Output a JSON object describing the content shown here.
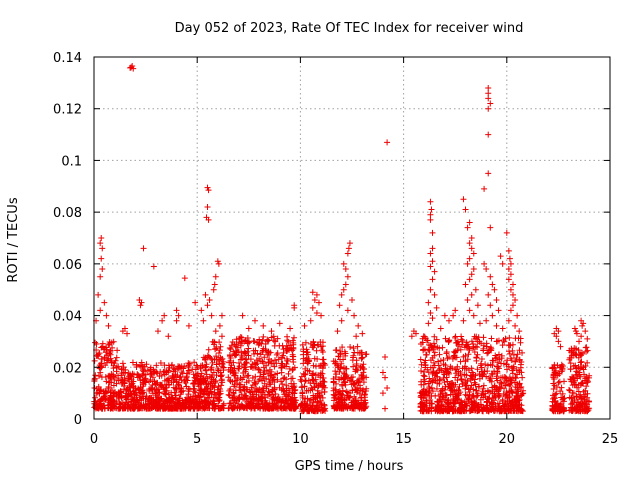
{
  "chart_data": {
    "type": "scatter",
    "title": "Day 052 of 2023, Rate Of TEC Index for receiver wind",
    "xlabel": "GPS time / hours",
    "ylabel": "ROTI / TECUs",
    "xlim": [
      0,
      25
    ],
    "ylim": [
      0,
      0.14
    ],
    "xticks": [
      0,
      5,
      10,
      15,
      20,
      25
    ],
    "yticks": [
      0,
      0.02,
      0.04,
      0.06,
      0.08,
      0.1,
      0.12,
      0.14
    ],
    "ytick_labels": [
      "0",
      "0.02",
      "0.04",
      "0.06",
      "0.08",
      "0.1",
      "0.12",
      "0.14"
    ],
    "grid": true,
    "marker": "+",
    "color": "#ee0000",
    "dense_bands": [
      {
        "x": [
          0.0,
          1.2
        ],
        "y": [
          0.004,
          0.03
        ]
      },
      {
        "x": [
          1.2,
          5.3
        ],
        "y": [
          0.004,
          0.022
        ]
      },
      {
        "x": [
          5.3,
          6.3
        ],
        "y": [
          0.004,
          0.03
        ]
      },
      {
        "x": [
          6.5,
          9.8
        ],
        "y": [
          0.004,
          0.032
        ]
      },
      {
        "x": [
          10.0,
          11.2
        ],
        "y": [
          0.003,
          0.03
        ]
      },
      {
        "x": [
          11.6,
          13.2
        ],
        "y": [
          0.004,
          0.028
        ]
      },
      {
        "x": [
          15.8,
          20.8
        ],
        "y": [
          0.003,
          0.032
        ]
      },
      {
        "x": [
          22.2,
          22.8
        ],
        "y": [
          0.003,
          0.022
        ]
      },
      {
        "x": [
          23.0,
          24.0
        ],
        "y": [
          0.003,
          0.028
        ]
      }
    ],
    "points": [
      [
        1.8,
        0.136
      ],
      [
        1.9,
        0.1355
      ],
      [
        1.85,
        0.1365
      ],
      [
        1.75,
        0.1358
      ],
      [
        2.4,
        0.066
      ],
      [
        2.9,
        0.059
      ],
      [
        4.4,
        0.0545
      ],
      [
        0.35,
        0.07
      ],
      [
        0.3,
        0.068
      ],
      [
        0.4,
        0.066
      ],
      [
        0.35,
        0.062
      ],
      [
        0.4,
        0.058
      ],
      [
        0.3,
        0.055
      ],
      [
        0.2,
        0.048
      ],
      [
        0.5,
        0.045
      ],
      [
        0.3,
        0.042
      ],
      [
        0.6,
        0.04
      ],
      [
        0.1,
        0.038
      ],
      [
        0.7,
        0.036
      ],
      [
        1.5,
        0.035
      ],
      [
        1.4,
        0.034
      ],
      [
        1.6,
        0.033
      ],
      [
        2.2,
        0.046
      ],
      [
        2.3,
        0.045
      ],
      [
        2.25,
        0.044
      ],
      [
        3.4,
        0.04
      ],
      [
        3.3,
        0.038
      ],
      [
        4.0,
        0.042
      ],
      [
        4.1,
        0.04
      ],
      [
        4.0,
        0.038
      ],
      [
        4.9,
        0.045
      ],
      [
        3.1,
        0.034
      ],
      [
        3.6,
        0.032
      ],
      [
        4.6,
        0.036
      ],
      [
        5.5,
        0.0895
      ],
      [
        5.55,
        0.0885
      ],
      [
        5.5,
        0.082
      ],
      [
        5.45,
        0.078
      ],
      [
        5.55,
        0.077
      ],
      [
        6.0,
        0.061
      ],
      [
        6.05,
        0.06
      ],
      [
        5.9,
        0.055
      ],
      [
        5.85,
        0.052
      ],
      [
        5.8,
        0.05
      ],
      [
        5.4,
        0.048
      ],
      [
        5.6,
        0.046
      ],
      [
        5.5,
        0.044
      ],
      [
        5.2,
        0.042
      ],
      [
        5.7,
        0.04
      ],
      [
        5.3,
        0.038
      ],
      [
        6.2,
        0.04
      ],
      [
        6.1,
        0.036
      ],
      [
        5.9,
        0.034
      ],
      [
        6.2,
        0.032
      ],
      [
        7.2,
        0.04
      ],
      [
        7.8,
        0.038
      ],
      [
        8.2,
        0.036
      ],
      [
        9.0,
        0.037
      ],
      [
        7.5,
        0.035
      ],
      [
        8.6,
        0.034
      ],
      [
        9.5,
        0.035
      ],
      [
        9.7,
        0.044
      ],
      [
        9.7,
        0.043
      ],
      [
        10.6,
        0.049
      ],
      [
        10.8,
        0.048
      ],
      [
        10.7,
        0.046
      ],
      [
        10.9,
        0.045
      ],
      [
        10.6,
        0.043
      ],
      [
        10.8,
        0.041
      ],
      [
        10.5,
        0.038
      ],
      [
        10.2,
        0.036
      ],
      [
        11.0,
        0.04
      ],
      [
        12.4,
        0.068
      ],
      [
        12.35,
        0.066
      ],
      [
        12.3,
        0.064
      ],
      [
        12.1,
        0.06
      ],
      [
        12.2,
        0.058
      ],
      [
        12.3,
        0.055
      ],
      [
        12.2,
        0.052
      ],
      [
        12.1,
        0.05
      ],
      [
        12.0,
        0.048
      ],
      [
        12.5,
        0.046
      ],
      [
        11.9,
        0.044
      ],
      [
        12.3,
        0.042
      ],
      [
        12.6,
        0.04
      ],
      [
        12.0,
        0.038
      ],
      [
        12.8,
        0.036
      ],
      [
        11.8,
        0.034
      ],
      [
        13.0,
        0.033
      ],
      [
        12.7,
        0.032
      ],
      [
        14.2,
        0.107
      ],
      [
        14.1,
        0.024
      ],
      [
        14.0,
        0.018
      ],
      [
        14.1,
        0.016
      ],
      [
        14.2,
        0.012
      ],
      [
        14.0,
        0.01
      ],
      [
        14.1,
        0.004
      ],
      [
        15.5,
        0.034
      ],
      [
        15.6,
        0.033
      ],
      [
        15.4,
        0.032
      ],
      [
        16.3,
        0.084
      ],
      [
        16.35,
        0.081
      ],
      [
        16.3,
        0.079
      ],
      [
        16.3,
        0.077
      ],
      [
        16.4,
        0.072
      ],
      [
        16.4,
        0.066
      ],
      [
        16.3,
        0.064
      ],
      [
        16.4,
        0.061
      ],
      [
        16.3,
        0.059
      ],
      [
        16.5,
        0.057
      ],
      [
        16.4,
        0.054
      ],
      [
        16.3,
        0.05
      ],
      [
        16.5,
        0.048
      ],
      [
        16.2,
        0.045
      ],
      [
        16.6,
        0.043
      ],
      [
        16.3,
        0.041
      ],
      [
        16.4,
        0.039
      ],
      [
        16.2,
        0.037
      ],
      [
        16.8,
        0.035
      ],
      [
        17.0,
        0.04
      ],
      [
        17.2,
        0.038
      ],
      [
        17.5,
        0.042
      ],
      [
        17.4,
        0.04
      ],
      [
        17.9,
        0.085
      ],
      [
        18.0,
        0.081
      ],
      [
        18.2,
        0.076
      ],
      [
        18.1,
        0.074
      ],
      [
        18.3,
        0.07
      ],
      [
        18.2,
        0.068
      ],
      [
        18.3,
        0.066
      ],
      [
        18.4,
        0.064
      ],
      [
        18.2,
        0.062
      ],
      [
        18.1,
        0.06
      ],
      [
        18.4,
        0.058
      ],
      [
        18.3,
        0.056
      ],
      [
        18.2,
        0.054
      ],
      [
        18.0,
        0.052
      ],
      [
        18.5,
        0.05
      ],
      [
        18.3,
        0.048
      ],
      [
        18.1,
        0.046
      ],
      [
        18.6,
        0.044
      ],
      [
        18.2,
        0.042
      ],
      [
        18.4,
        0.04
      ],
      [
        17.9,
        0.038
      ],
      [
        18.7,
        0.037
      ],
      [
        19.1,
        0.128
      ],
      [
        19.1,
        0.126
      ],
      [
        19.1,
        0.124
      ],
      [
        19.2,
        0.122
      ],
      [
        19.1,
        0.12
      ],
      [
        19.1,
        0.11
      ],
      [
        19.1,
        0.095
      ],
      [
        18.9,
        0.089
      ],
      [
        19.2,
        0.074
      ],
      [
        18.9,
        0.06
      ],
      [
        19.0,
        0.058
      ],
      [
        19.2,
        0.055
      ],
      [
        19.3,
        0.052
      ],
      [
        19.4,
        0.05
      ],
      [
        19.1,
        0.048
      ],
      [
        19.5,
        0.046
      ],
      [
        19.2,
        0.044
      ],
      [
        19.6,
        0.042
      ],
      [
        19.3,
        0.04
      ],
      [
        19.0,
        0.038
      ],
      [
        19.5,
        0.036
      ],
      [
        19.8,
        0.035
      ],
      [
        19.7,
        0.063
      ],
      [
        19.8,
        0.06
      ],
      [
        20.0,
        0.072
      ],
      [
        20.1,
        0.065
      ],
      [
        20.15,
        0.062
      ],
      [
        20.2,
        0.06
      ],
      [
        20.1,
        0.058
      ],
      [
        20.2,
        0.056
      ],
      [
        20.1,
        0.054
      ],
      [
        20.3,
        0.052
      ],
      [
        20.2,
        0.05
      ],
      [
        20.3,
        0.048
      ],
      [
        20.4,
        0.046
      ],
      [
        20.3,
        0.044
      ],
      [
        20.2,
        0.042
      ],
      [
        20.5,
        0.04
      ],
      [
        20.1,
        0.038
      ],
      [
        20.4,
        0.036
      ],
      [
        20.6,
        0.034
      ],
      [
        22.4,
        0.035
      ],
      [
        22.5,
        0.034
      ],
      [
        22.3,
        0.033
      ],
      [
        22.4,
        0.032
      ],
      [
        22.5,
        0.03
      ],
      [
        22.6,
        0.028
      ],
      [
        23.3,
        0.035
      ],
      [
        23.35,
        0.034
      ],
      [
        23.4,
        0.033
      ],
      [
        23.6,
        0.038
      ],
      [
        23.7,
        0.037
      ],
      [
        23.65,
        0.036
      ],
      [
        23.8,
        0.034
      ],
      [
        23.6,
        0.032
      ],
      [
        23.9,
        0.031
      ],
      [
        23.5,
        0.03
      ]
    ]
  }
}
